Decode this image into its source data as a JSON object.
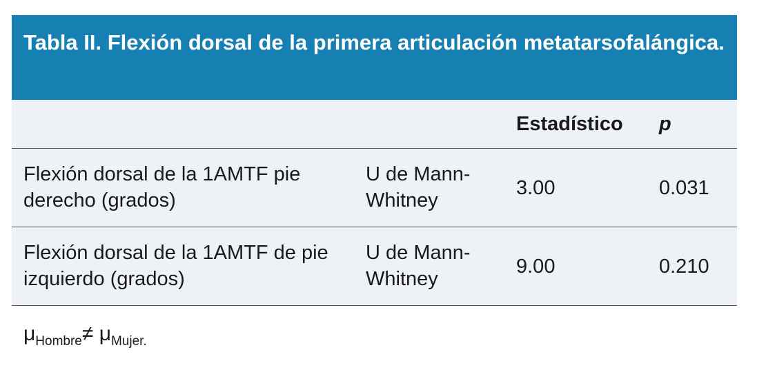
{
  "table": {
    "title": "Tabla II. Flexión dorsal de la primera articulación metatarsofalángica.",
    "headers": [
      "",
      "",
      "Estadístico",
      "p"
    ],
    "rows": [
      {
        "variable": "Flexión dorsal de la 1AMTF pie derecho (grados)",
        "test": "U de Mann-Whitney",
        "statistic": "3.00",
        "p": "0.031"
      },
      {
        "variable": "Flexión dorsal de la 1AMTF de pie izquierdo (grados)",
        "test": "U de Mann-Whitney",
        "statistic": "9.00",
        "p": "0.210"
      }
    ]
  },
  "footnote": {
    "symbol": "μ",
    "sub1": "Hombre",
    "neq": "≠",
    "sub2": "Mujer."
  },
  "colors": {
    "header": "#1680b2",
    "body": "#eef2f7"
  }
}
